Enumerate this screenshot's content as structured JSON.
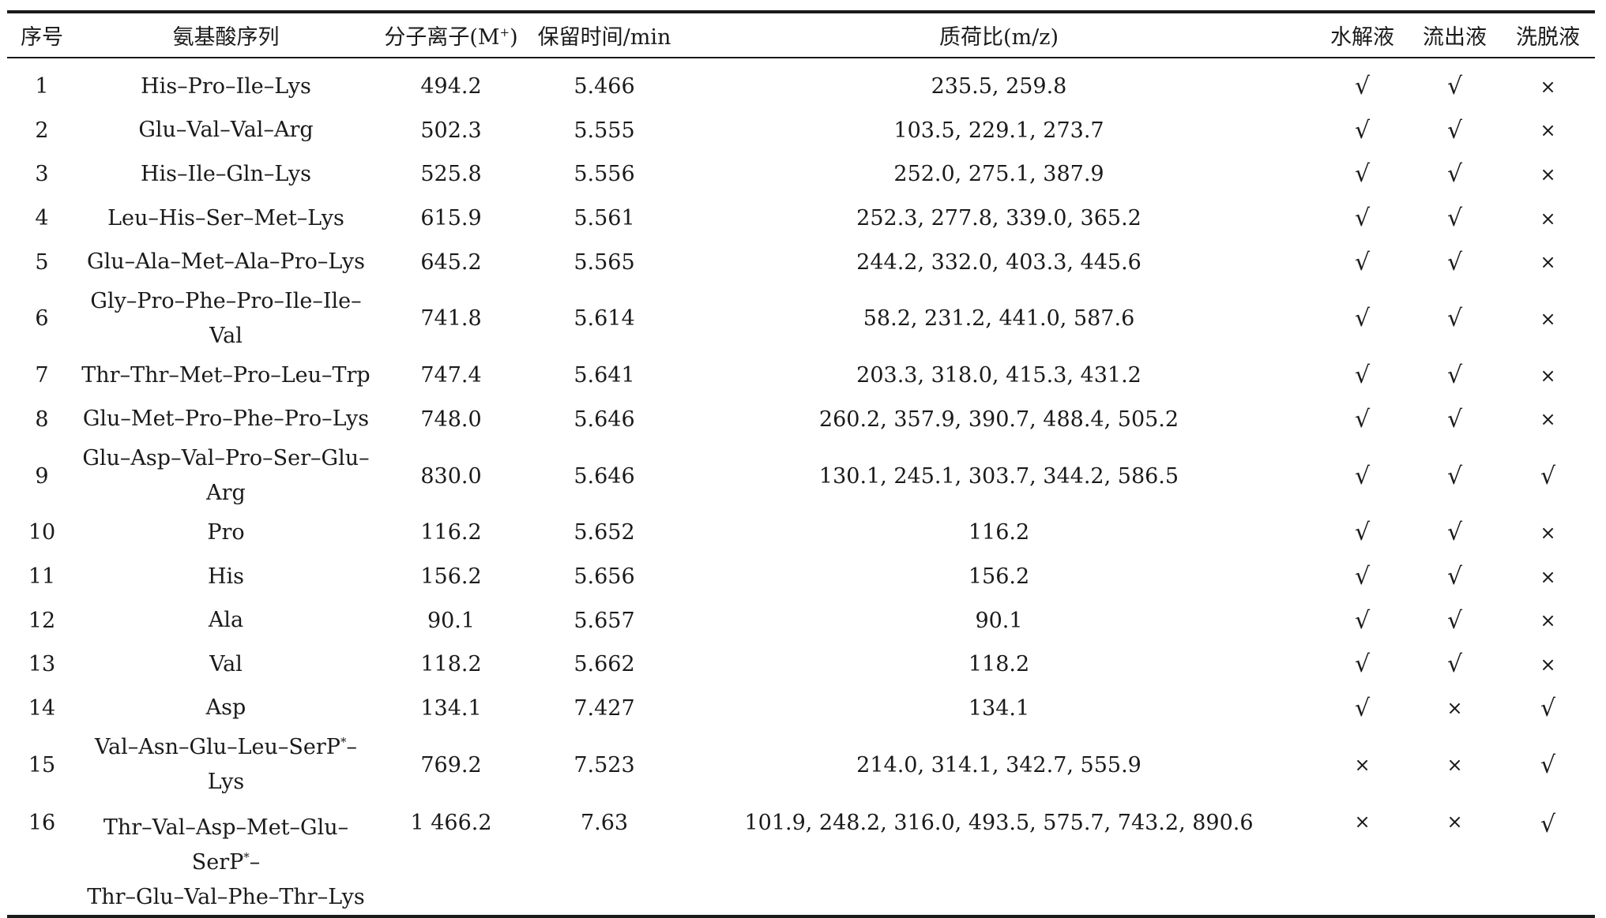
{
  "columns": [
    "序号",
    "氨基酸序列",
    "分子离子(M⁺)",
    "保留时间/min",
    "质荷比(m/z)",
    "水解液",
    "流出液",
    "洗脱液"
  ],
  "marks": {
    "yes": "√",
    "no": "×"
  },
  "rows": [
    {
      "no": "1",
      "seq": "His–Pro–Ile–Lys",
      "mz_ion": "494.2",
      "rt": "5.466",
      "ratio": "235.5, 259.8",
      "hydro": "√",
      "efflux": "√",
      "elute": "×"
    },
    {
      "no": "2",
      "seq": "Glu–Val–Val–Arg",
      "mz_ion": "502.3",
      "rt": "5.555",
      "ratio": "103.5, 229.1, 273.7",
      "hydro": "√",
      "efflux": "√",
      "elute": "×"
    },
    {
      "no": "3",
      "seq": "His–Ile–Gln–Lys",
      "mz_ion": "525.8",
      "rt": "5.556",
      "ratio": "252.0, 275.1, 387.9",
      "hydro": "√",
      "efflux": "√",
      "elute": "×"
    },
    {
      "no": "4",
      "seq": "Leu–His–Ser–Met–Lys",
      "mz_ion": "615.9",
      "rt": "5.561",
      "ratio": "252.3, 277.8, 339.0, 365.2",
      "hydro": "√",
      "efflux": "√",
      "elute": "×"
    },
    {
      "no": "5",
      "seq": "Glu–Ala–Met–Ala–Pro–Lys",
      "mz_ion": "645.2",
      "rt": "5.565",
      "ratio": "244.2, 332.0, 403.3, 445.6",
      "hydro": "√",
      "efflux": "√",
      "elute": "×"
    },
    {
      "no": "6",
      "seq": "Gly–Pro–Phe–Pro–Ile–Ile–Val",
      "mz_ion": "741.8",
      "rt": "5.614",
      "ratio": "58.2, 231.2, 441.0, 587.6",
      "hydro": "√",
      "efflux": "√",
      "elute": "×"
    },
    {
      "no": "7",
      "seq": "Thr–Thr–Met–Pro–Leu–Trp",
      "mz_ion": "747.4",
      "rt": "5.641",
      "ratio": "203.3, 318.0, 415.3, 431.2",
      "hydro": "√",
      "efflux": "√",
      "elute": "×"
    },
    {
      "no": "8",
      "seq": "Glu–Met–Pro–Phe–Pro–Lys",
      "mz_ion": "748.0",
      "rt": "5.646",
      "ratio": "260.2, 357.9, 390.7, 488.4, 505.2",
      "hydro": "√",
      "efflux": "√",
      "elute": "×"
    },
    {
      "no": "9",
      "seq": "Glu–Asp–Val–Pro–Ser–Glu–Arg",
      "mz_ion": "830.0",
      "rt": "5.646",
      "ratio": "130.1, 245.1, 303.7, 344.2, 586.5",
      "hydro": "√",
      "efflux": "√",
      "elute": "√"
    },
    {
      "no": "10",
      "seq": "Pro",
      "mz_ion": "116.2",
      "rt": "5.652",
      "ratio": "116.2",
      "hydro": "√",
      "efflux": "√",
      "elute": "×"
    },
    {
      "no": "11",
      "seq": "His",
      "mz_ion": "156.2",
      "rt": "5.656",
      "ratio": "156.2",
      "hydro": "√",
      "efflux": "√",
      "elute": "×"
    },
    {
      "no": "12",
      "seq": "Ala",
      "mz_ion": "90.1",
      "rt": "5.657",
      "ratio": "90.1",
      "hydro": "√",
      "efflux": "√",
      "elute": "×"
    },
    {
      "no": "13",
      "seq": "Val",
      "mz_ion": "118.2",
      "rt": "5.662",
      "ratio": "118.2",
      "hydro": "√",
      "efflux": "√",
      "elute": "×"
    },
    {
      "no": "14",
      "seq": "Asp",
      "mz_ion": "134.1",
      "rt": "7.427",
      "ratio": "134.1",
      "hydro": "√",
      "efflux": "×",
      "elute": "√"
    },
    {
      "no": "15",
      "seq": "Val–Asn–Glu–Leu–SerP*–Lys",
      "mz_ion": "769.2",
      "rt": "7.523",
      "ratio": "214.0, 314.1, 342.7, 555.9",
      "hydro": "×",
      "efflux": "×",
      "elute": "√"
    },
    {
      "no": "16",
      "seq": "Thr–Val–Asp–Met–Glu–SerP*–Thr–Glu–Val–Phe–Thr–Lys",
      "mz_ion": "1 466.2",
      "rt": "7.63",
      "ratio": "101.9, 248.2, 316.0, 493.5, 575.7, 743.2, 890.6",
      "hydro": "×",
      "efflux": "×",
      "elute": "√"
    }
  ]
}
